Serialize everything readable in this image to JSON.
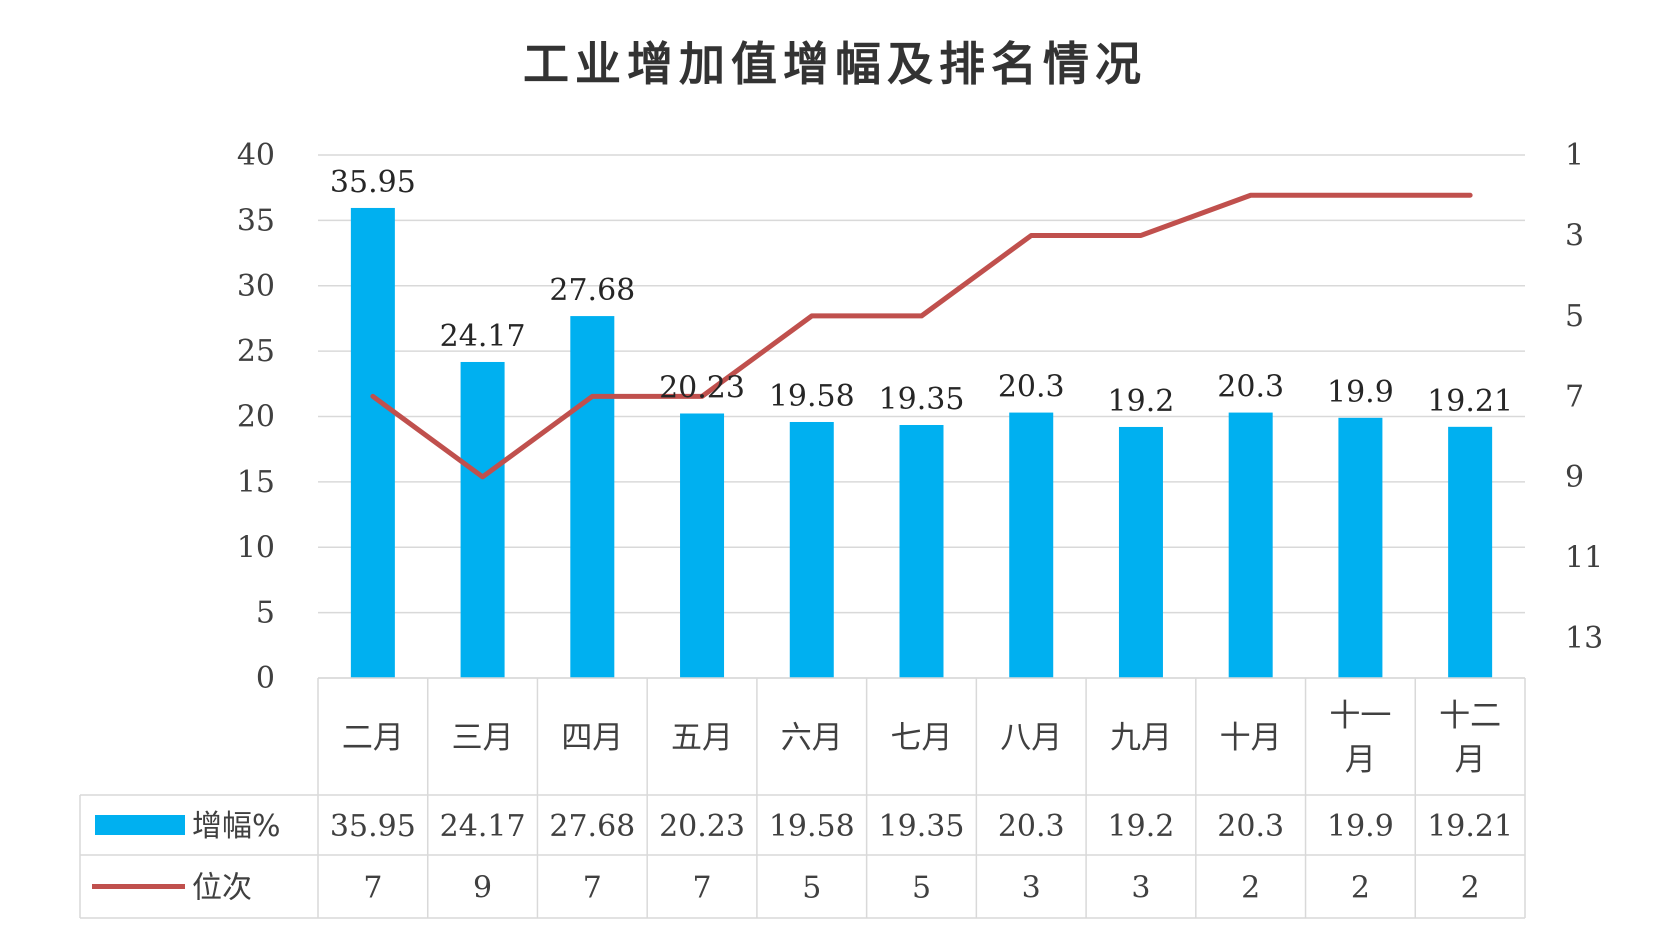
{
  "chart_data": {
    "type": "bar",
    "title": "工业增加值增幅及排名情况",
    "categories": [
      [
        "二月"
      ],
      [
        "三月"
      ],
      [
        "四月"
      ],
      [
        "五月"
      ],
      [
        "六月"
      ],
      [
        "七月"
      ],
      [
        "八月"
      ],
      [
        "九月"
      ],
      [
        "十月"
      ],
      [
        "十一",
        "月"
      ],
      [
        "十二",
        "月"
      ]
    ],
    "series": [
      {
        "name": "增幅%",
        "type": "bar",
        "axis": "left",
        "color": "#00b0f0",
        "values": [
          35.95,
          24.17,
          27.68,
          20.23,
          19.58,
          19.35,
          20.3,
          19.2,
          20.3,
          19.9,
          19.21
        ],
        "labels": [
          "35.95",
          "24.17",
          "27.68",
          "20.23",
          "19.58",
          "19.35",
          "20.3",
          "19.2",
          "20.3",
          "19.9",
          "19.21"
        ]
      },
      {
        "name": "位次",
        "type": "line",
        "axis": "right",
        "color": "#c0504d",
        "values": [
          7,
          9,
          7,
          7,
          5,
          5,
          3,
          3,
          2,
          2,
          2
        ]
      }
    ],
    "y_left": {
      "min": 0,
      "max": 40,
      "ticks": [
        0,
        5,
        10,
        15,
        20,
        25,
        30,
        35,
        40
      ]
    },
    "y_right": {
      "min": 1,
      "max": 14,
      "reversed": true,
      "ticks": [
        1,
        3,
        5,
        7,
        9,
        11,
        13
      ]
    },
    "grid": true,
    "legend": "data-table",
    "data_table": true
  }
}
